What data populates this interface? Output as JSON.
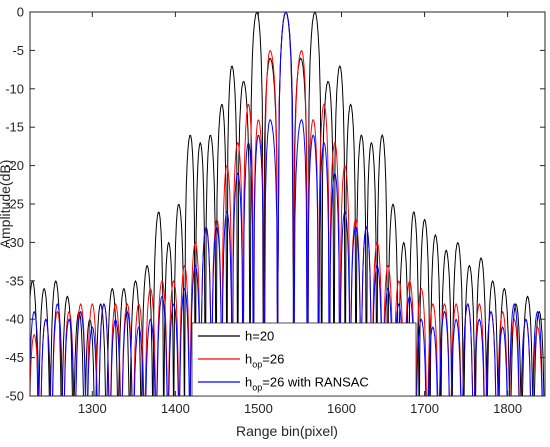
{
  "chart_data": {
    "type": "line",
    "title": "",
    "xlabel": "Range bin(pixel)",
    "ylabel": "Amplitude(dB)",
    "xlim": [
      1225,
      1845
    ],
    "ylim": [
      -50,
      0
    ],
    "xticks": [
      1300,
      1400,
      1500,
      1600,
      1700,
      1800
    ],
    "yticks": [
      0,
      -5,
      -10,
      -15,
      -20,
      -25,
      -30,
      -35,
      -40,
      -45,
      -50
    ],
    "xtick_labels": [
      "1300",
      "1400",
      "1500",
      "1600",
      "1700",
      "1800"
    ],
    "ytick_labels": [
      "0",
      "-5",
      "-10",
      "-15",
      "-20",
      "-25",
      "-30",
      "-35",
      "-40",
      "-45",
      "-50"
    ],
    "grid": false,
    "legend_position": "bottom-center",
    "center": 1533,
    "series": [
      {
        "name": "h=20",
        "legend_main": "h=20",
        "legend_sub": "",
        "legend_suffix": "",
        "color": "#000000",
        "peaks": [
          [
            1228,
            -35
          ],
          [
            1242,
            -36
          ],
          [
            1256,
            -35
          ],
          [
            1270,
            -37
          ],
          [
            1284,
            -39
          ],
          [
            1297,
            -40
          ],
          [
            1310,
            -38
          ],
          [
            1324,
            -36
          ],
          [
            1338,
            -36
          ],
          [
            1352,
            -35
          ],
          [
            1366,
            -33
          ],
          [
            1380,
            -26
          ],
          [
            1392,
            -30
          ],
          [
            1404,
            -25
          ],
          [
            1418,
            -16
          ],
          [
            1430,
            -17
          ],
          [
            1442,
            -16
          ],
          [
            1456,
            -12
          ],
          [
            1468,
            -7
          ],
          [
            1482,
            -9
          ],
          [
            1498,
            0
          ],
          [
            1514,
            -6
          ],
          [
            1533,
            0
          ],
          [
            1551,
            -6
          ],
          [
            1568,
            0
          ],
          [
            1584,
            -9
          ],
          [
            1598,
            -7
          ],
          [
            1611,
            -12
          ],
          [
            1624,
            -16
          ],
          [
            1636,
            -17
          ],
          [
            1649,
            -16
          ],
          [
            1662,
            -25
          ],
          [
            1675,
            -30
          ],
          [
            1687,
            -26
          ],
          [
            1700,
            -27
          ],
          [
            1713,
            -29
          ],
          [
            1726,
            -31
          ],
          [
            1740,
            -30
          ],
          [
            1754,
            -33
          ],
          [
            1768,
            -32
          ],
          [
            1782,
            -35
          ],
          [
            1796,
            -36
          ],
          [
            1810,
            -38
          ],
          [
            1824,
            -37
          ],
          [
            1838,
            -39
          ]
        ]
      },
      {
        "name": "hop=26",
        "legend_main": "h",
        "legend_sub": "op",
        "legend_suffix": "=26",
        "color": "#ff0000",
        "peaks": [
          [
            1230,
            -42
          ],
          [
            1244,
            -40
          ],
          [
            1258,
            -39
          ],
          [
            1272,
            -39
          ],
          [
            1286,
            -38
          ],
          [
            1300,
            -38
          ],
          [
            1314,
            -38
          ],
          [
            1328,
            -38
          ],
          [
            1342,
            -38
          ],
          [
            1356,
            -38
          ],
          [
            1370,
            -36
          ],
          [
            1384,
            -35
          ],
          [
            1398,
            -35
          ],
          [
            1411,
            -33
          ],
          [
            1424,
            -30
          ],
          [
            1437,
            -28
          ],
          [
            1450,
            -27
          ],
          [
            1462,
            -20
          ],
          [
            1475,
            -17
          ],
          [
            1488,
            -12
          ],
          [
            1500,
            -14
          ],
          [
            1514,
            -5
          ],
          [
            1533,
            0
          ],
          [
            1552,
            -5
          ],
          [
            1566,
            -14
          ],
          [
            1579,
            -12
          ],
          [
            1592,
            -17
          ],
          [
            1604,
            -20
          ],
          [
            1617,
            -27
          ],
          [
            1630,
            -28
          ],
          [
            1643,
            -30
          ],
          [
            1656,
            -33
          ],
          [
            1669,
            -35
          ],
          [
            1682,
            -35
          ],
          [
            1696,
            -36
          ],
          [
            1710,
            -38
          ],
          [
            1724,
            -38
          ],
          [
            1738,
            -38
          ],
          [
            1752,
            -38
          ],
          [
            1766,
            -38
          ],
          [
            1780,
            -39
          ],
          [
            1794,
            -39
          ],
          [
            1808,
            -40
          ],
          [
            1822,
            -40
          ],
          [
            1836,
            -41
          ]
        ]
      },
      {
        "name": "hop=26 with RANSAC",
        "legend_main": "h",
        "legend_sub": "op",
        "legend_suffix": "=26 with RANSAC",
        "color": "#0000ff",
        "peaks": [
          [
            1230,
            -39
          ],
          [
            1244,
            -40
          ],
          [
            1258,
            -38
          ],
          [
            1272,
            -40
          ],
          [
            1286,
            -39
          ],
          [
            1300,
            -41
          ],
          [
            1314,
            -38
          ],
          [
            1328,
            -40
          ],
          [
            1342,
            -39
          ],
          [
            1356,
            -41
          ],
          [
            1370,
            -40
          ],
          [
            1384,
            -37
          ],
          [
            1398,
            -38
          ],
          [
            1411,
            -36
          ],
          [
            1424,
            -33
          ],
          [
            1437,
            -28
          ],
          [
            1450,
            -28
          ],
          [
            1462,
            -26
          ],
          [
            1475,
            -21
          ],
          [
            1488,
            -17
          ],
          [
            1500,
            -16
          ],
          [
            1514,
            -14
          ],
          [
            1533,
            0
          ],
          [
            1552,
            -14
          ],
          [
            1566,
            -16
          ],
          [
            1579,
            -17
          ],
          [
            1592,
            -21
          ],
          [
            1604,
            -26
          ],
          [
            1617,
            -28
          ],
          [
            1630,
            -28
          ],
          [
            1643,
            -33
          ],
          [
            1656,
            -36
          ],
          [
            1669,
            -38
          ],
          [
            1682,
            -37
          ],
          [
            1696,
            -40
          ],
          [
            1710,
            -41
          ],
          [
            1724,
            -39
          ],
          [
            1738,
            -40
          ],
          [
            1752,
            -38
          ],
          [
            1766,
            -40
          ],
          [
            1780,
            -39
          ],
          [
            1794,
            -41
          ],
          [
            1808,
            -38
          ],
          [
            1822,
            -40
          ],
          [
            1836,
            -39
          ]
        ]
      }
    ]
  }
}
